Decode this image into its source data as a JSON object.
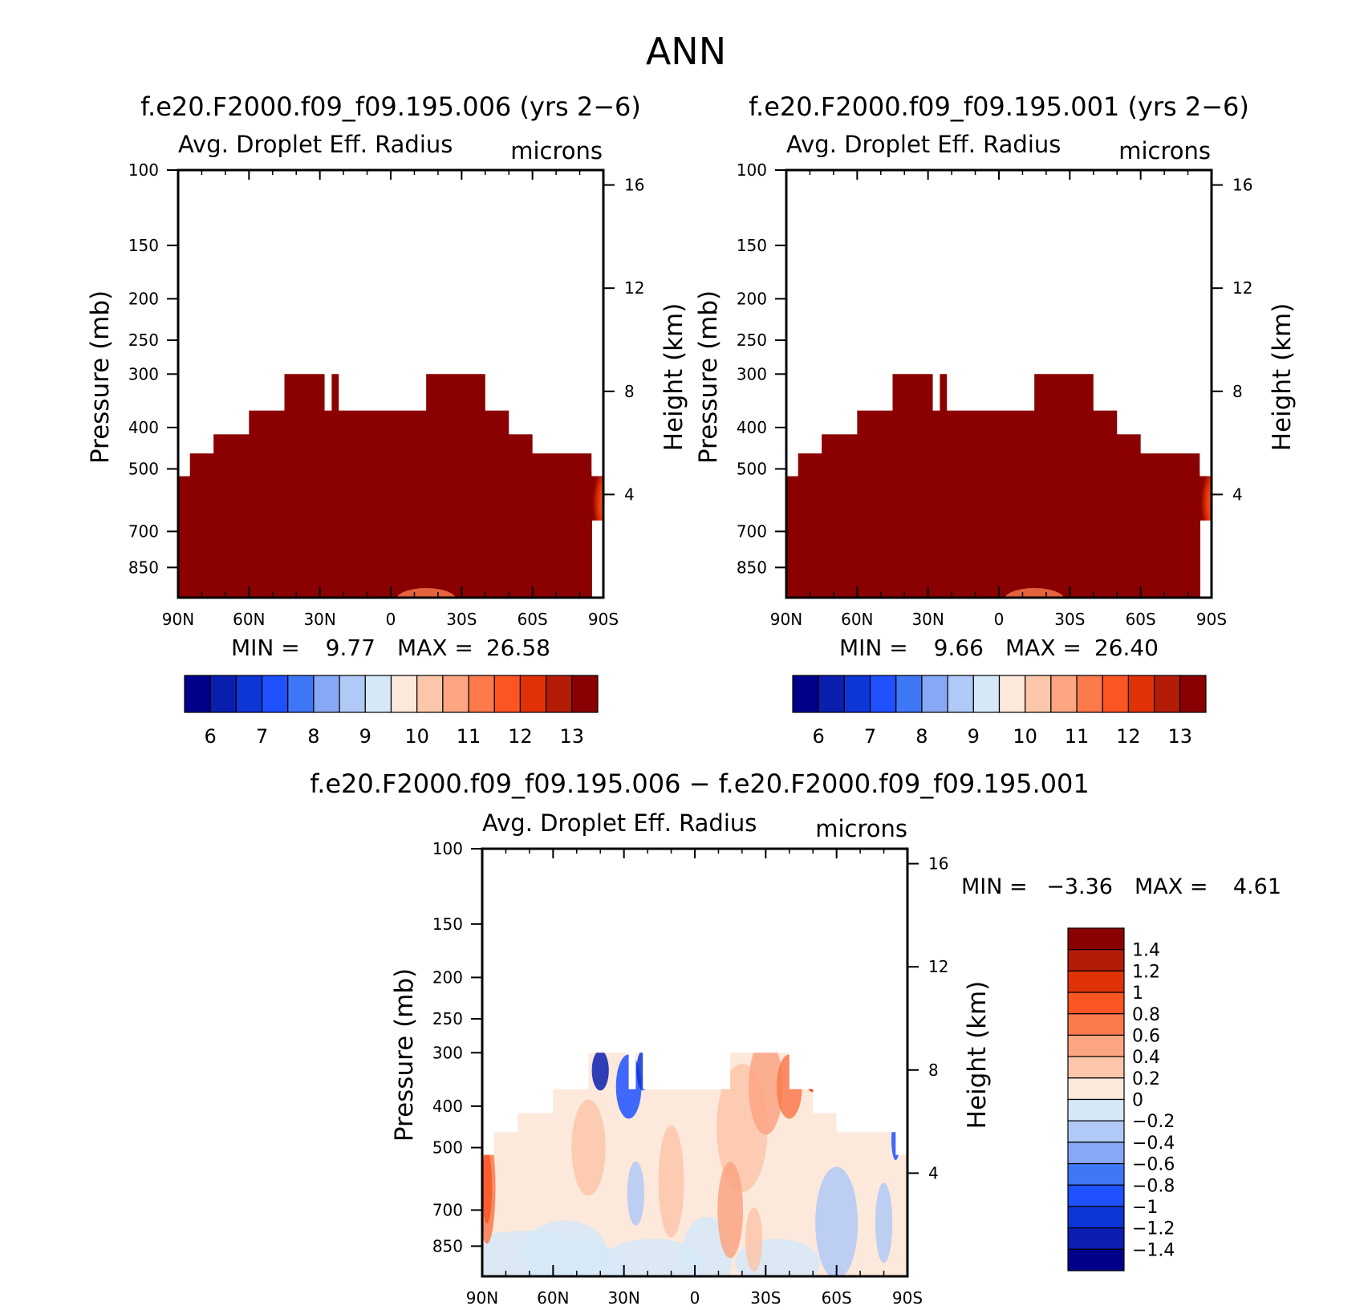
{
  "main_title": "ANN",
  "chart_data": [
    {
      "type": "heatmap",
      "title": "f.e20.F2000.f09_f09.195.006 (yrs 2−6)",
      "subtitle_left": "Avg. Droplet Eff. Radius",
      "subtitle_right": "microns",
      "ylabel": "Pressure (mb)",
      "ylabel_right": "Height (km)",
      "x_ticks": [
        "90N",
        "60N",
        "30N",
        "0",
        "30S",
        "60S",
        "90S"
      ],
      "y_ticks": [
        "100",
        "150",
        "200",
        "250",
        "300",
        "400",
        "500",
        "700",
        "850"
      ],
      "y_ticks_right": [
        "16",
        "12",
        "8",
        "4"
      ],
      "ylim_mb": [
        1000,
        100
      ],
      "y_scale": "log",
      "min_label": "MIN =",
      "min_value": "9.77",
      "max_label": "MAX =",
      "max_value": "26.58",
      "colorbar_labels": [
        "6",
        "7",
        "8",
        "9",
        "10",
        "11",
        "12",
        "13"
      ],
      "colorbar_levels": [
        5.5,
        6,
        6.5,
        7,
        7.5,
        8,
        8.5,
        9,
        9.5,
        10,
        10.5,
        11,
        11.5,
        12,
        12.5,
        13,
        13.5
      ],
      "colorbar_orientation": "horizontal",
      "cloud_top_mb": {
        "lat": [
          90,
          85,
          75,
          60,
          45,
          30,
          28,
          25,
          22,
          15,
          0,
          -15,
          -30,
          -40,
          -50,
          -60,
          -70,
          -85,
          -90
        ],
        "p": [
          520,
          460,
          415,
          365,
          300,
          300,
          365,
          300,
          365,
          365,
          365,
          300,
          300,
          365,
          415,
          460,
          460,
          520,
          520
        ]
      },
      "dominant_value": "> 13.5"
    },
    {
      "type": "heatmap",
      "title": "f.e20.F2000.f09_f09.195.001 (yrs 2−6)",
      "subtitle_left": "Avg. Droplet Eff. Radius",
      "subtitle_right": "microns",
      "ylabel": "Pressure (mb)",
      "ylabel_right": "Height (km)",
      "x_ticks": [
        "90N",
        "60N",
        "30N",
        "0",
        "30S",
        "60S",
        "90S"
      ],
      "y_ticks": [
        "100",
        "150",
        "200",
        "250",
        "300",
        "400",
        "500",
        "700",
        "850"
      ],
      "y_ticks_right": [
        "16",
        "12",
        "8",
        "4"
      ],
      "ylim_mb": [
        1000,
        100
      ],
      "y_scale": "log",
      "min_label": "MIN =",
      "min_value": "9.66",
      "max_label": "MAX =",
      "max_value": "26.40",
      "colorbar_labels": [
        "6",
        "7",
        "8",
        "9",
        "10",
        "11",
        "12",
        "13"
      ],
      "colorbar_levels": [
        5.5,
        6,
        6.5,
        7,
        7.5,
        8,
        8.5,
        9,
        9.5,
        10,
        10.5,
        11,
        11.5,
        12,
        12.5,
        13,
        13.5
      ],
      "colorbar_orientation": "horizontal",
      "dominant_value": "> 13.5"
    },
    {
      "type": "heatmap",
      "title": "f.e20.F2000.f09_f09.195.006 − f.e20.F2000.f09_f09.195.001",
      "subtitle_left": "Avg. Droplet Eff. Radius",
      "subtitle_right": "microns",
      "ylabel": "Pressure (mb)",
      "ylabel_right": "Height (km)",
      "x_ticks": [
        "90N",
        "60N",
        "30N",
        "0",
        "30S",
        "60S",
        "90S"
      ],
      "y_ticks": [
        "100",
        "150",
        "200",
        "250",
        "300",
        "400",
        "500",
        "700",
        "850"
      ],
      "y_ticks_right": [
        "16",
        "12",
        "8",
        "4"
      ],
      "ylim_mb": [
        1000,
        100
      ],
      "y_scale": "log",
      "min_label": "MIN =",
      "min_value": "−3.36",
      "max_label": "MAX =",
      "max_value": "4.61",
      "colorbar_labels": [
        "1.4",
        "1.2",
        "1",
        "0.8",
        "0.6",
        "0.4",
        "0.2",
        "0",
        "−0.2",
        "−0.4",
        "−0.6",
        "−0.8",
        "−1",
        "−1.2",
        "−1.4"
      ],
      "colorbar_orientation": "vertical",
      "dominant_range": [
        -0.2,
        0.4
      ]
    }
  ],
  "colors": {
    "scale_16": [
      "#00008b",
      "#0a1fb0",
      "#0d36d6",
      "#1f51ff",
      "#3f78f6",
      "#87a8f4",
      "#b0c9f6",
      "#d6e8f7",
      "#fde9dc",
      "#fcc6aa",
      "#fba583",
      "#fa7a4c",
      "#fc5524",
      "#e03206",
      "#b31d08",
      "#8b0000"
    ],
    "cloud_red": "#8b0000"
  }
}
